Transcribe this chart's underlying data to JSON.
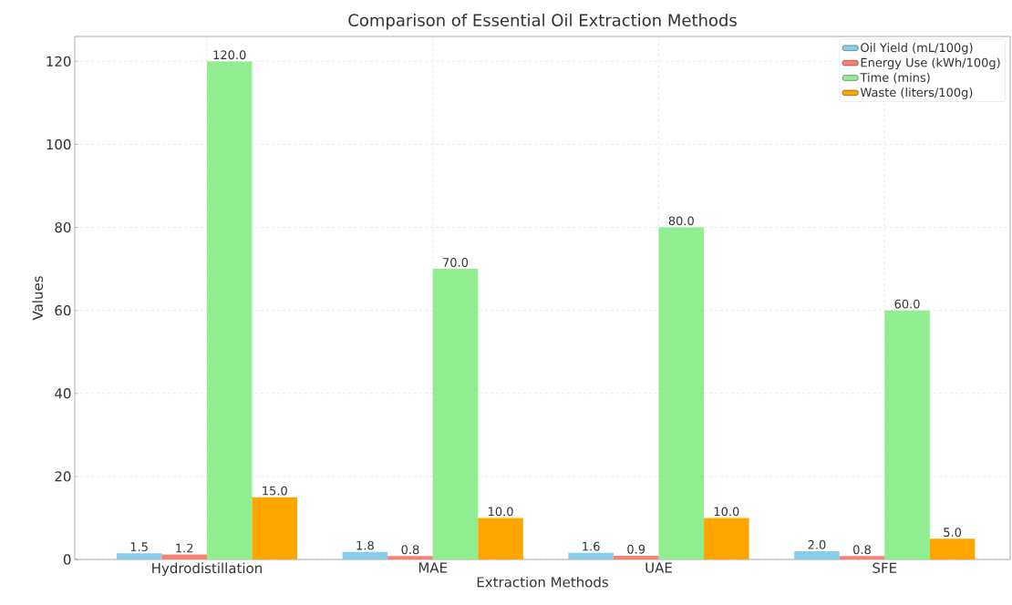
{
  "chart_data": {
    "type": "bar",
    "title": "Comparison of Essential Oil Extraction Methods",
    "xlabel": "Extraction Methods",
    "ylabel": "Values",
    "categories": [
      "Hydrodistillation",
      "MAE",
      "UAE",
      "SFE"
    ],
    "series": [
      {
        "name": "Oil Yield (mL/100g)",
        "color": "#87ceeb",
        "values": [
          1.5,
          1.8,
          1.6,
          2.0
        ],
        "value_labels": [
          "1.5",
          "1.8",
          "1.6",
          "2.0"
        ]
      },
      {
        "name": "Energy Use (kWh/100g)",
        "color": "#fa8072",
        "values": [
          1.2,
          0.8,
          0.9,
          0.8
        ],
        "value_labels": [
          "1.2",
          "0.8",
          "0.9",
          "0.8"
        ]
      },
      {
        "name": "Time (mins)",
        "color": "#90ee90",
        "values": [
          120,
          70,
          80,
          60
        ],
        "value_labels": [
          "120.0",
          "70.0",
          "80.0",
          "60.0"
        ]
      },
      {
        "name": "Waste (liters/100g)",
        "color": "#ffa500",
        "values": [
          15,
          10,
          10,
          5
        ],
        "value_labels": [
          "15.0",
          "10.0",
          "10.0",
          "5.0"
        ]
      }
    ],
    "ylim": [
      0,
      126
    ],
    "yticks": [
      0,
      20,
      40,
      60,
      80,
      100,
      120
    ],
    "grid": true,
    "legend": "top right"
  }
}
